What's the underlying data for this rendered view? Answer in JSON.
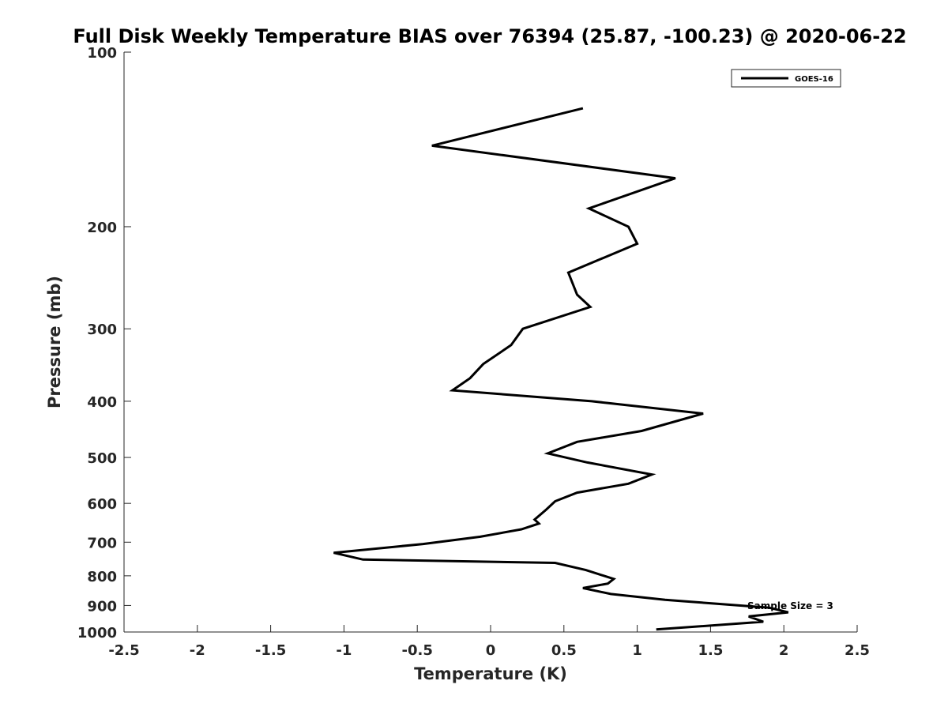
{
  "chart_data": {
    "type": "line",
    "title": "Full Disk Weekly Temperature BIAS over 76394 (25.87, -100.23) @ 2020-06-22",
    "xlabel": "Temperature (K)",
    "ylabel": "Pressure (mb)",
    "xlim": [
      -2.5,
      2.5
    ],
    "ylim": [
      100,
      1000
    ],
    "y_scale": "log",
    "y_reversed": true,
    "x_ticks": [
      "-2.5",
      "-2",
      "-1.5",
      "-1",
      "-0.5",
      "0",
      "0.5",
      "1",
      "1.5",
      "2",
      "2.5"
    ],
    "y_ticks": [
      "100",
      "200",
      "300",
      "400",
      "500",
      "600",
      "700",
      "800",
      "900",
      "1000"
    ],
    "grid": false,
    "legend_position": "top-right",
    "annotation": "Sample Size = 3",
    "series": [
      {
        "name": "GOES-16",
        "color": "#000000",
        "x": [
          0.63,
          -0.4,
          1.26,
          0.67,
          0.94,
          1.0,
          0.53,
          0.59,
          0.68,
          0.22,
          0.14,
          -0.05,
          -0.14,
          -0.26,
          0.69,
          1.45,
          1.03,
          0.59,
          0.39,
          0.66,
          1.1,
          0.94,
          0.59,
          0.44,
          0.38,
          0.3,
          0.33,
          0.21,
          -0.07,
          -0.46,
          -1.07,
          -0.87,
          0.44,
          0.65,
          0.84,
          0.8,
          0.63,
          0.82,
          1.19,
          1.9,
          2.03,
          1.76,
          1.86,
          1.13
        ],
        "y": [
          125,
          145,
          165,
          186,
          200,
          214,
          240,
          262,
          275,
          300,
          320,
          345,
          365,
          383,
          400,
          420,
          450,
          470,
          492,
          510,
          535,
          555,
          575,
          595,
          615,
          640,
          650,
          665,
          685,
          705,
          730,
          750,
          760,
          782,
          810,
          825,
          840,
          860,
          880,
          908,
          925,
          940,
          960,
          990
        ]
      }
    ]
  }
}
